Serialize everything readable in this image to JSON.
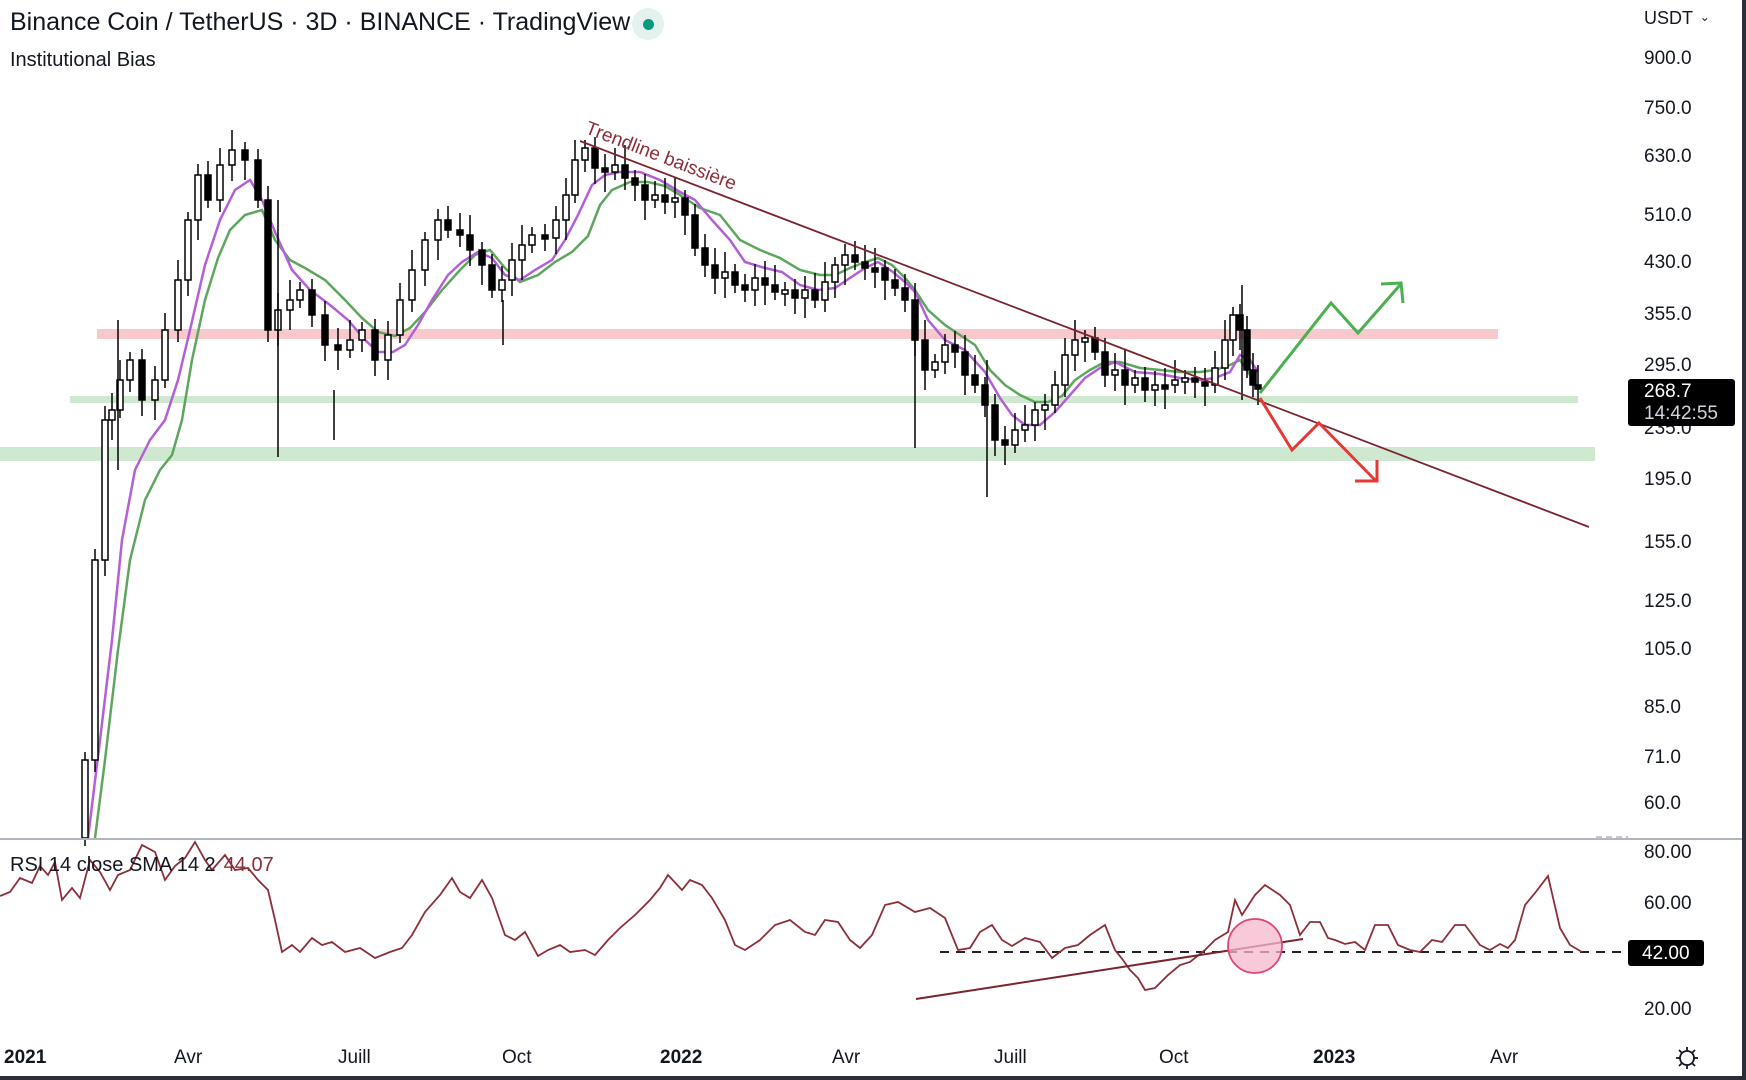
{
  "header": {
    "title": "Binance Coin / TetherUS · 3D · BINANCE · TradingView",
    "subtitle": "Institutional Bias",
    "status": "market-open"
  },
  "price_axis": {
    "currency": "USDT",
    "ticks": [
      "900.0",
      "750.0",
      "630.0",
      "510.0",
      "430.0",
      "355.0",
      "295.0",
      "235.0",
      "195.0",
      "155.0",
      "125.0",
      "105.0",
      "85.0",
      "71.0",
      "60.0"
    ],
    "last_price": "268.7",
    "countdown": "14:42:55"
  },
  "rsi": {
    "legend": "RSI 14 close SMA 14 2",
    "value": "44.07",
    "ticks": [
      "80.00",
      "60.00",
      "20.00"
    ],
    "level_label": "42.00"
  },
  "time_axis": {
    "labels": [
      {
        "text": "2021",
        "bold": true
      },
      {
        "text": "Avr",
        "bold": false
      },
      {
        "text": "Juill",
        "bold": false
      },
      {
        "text": "Oct",
        "bold": false
      },
      {
        "text": "2022",
        "bold": true
      },
      {
        "text": "Avr",
        "bold": false
      },
      {
        "text": "Juill",
        "bold": false
      },
      {
        "text": "Oct",
        "bold": false
      },
      {
        "text": "2023",
        "bold": true
      },
      {
        "text": "Avr",
        "bold": false
      }
    ]
  },
  "annotations": {
    "trendline_label": "Trendline baissière"
  },
  "colors": {
    "candle": "#000000",
    "ema_fast": "#b35fd6",
    "ema_slow": "#5ea65e",
    "resistance_zone": "#f7c9cc",
    "support_zone": "#cfe9d0",
    "trendline": "#7a2430",
    "rsi_line": "#8c2f39",
    "bull_arrow": "#4caf50",
    "bear_arrow": "#e53935",
    "highlight_circle": "#f6b8cc"
  },
  "chart_data": [
    {
      "type": "candlestick",
      "title": "Binance Coin / TetherUS · 3D · BINANCE",
      "xlabel": "",
      "ylabel": "USDT",
      "scale": "log",
      "ylim": [
        55,
        950
      ],
      "x_ticks": [
        "2021",
        "Avr",
        "Juill",
        "Oct",
        "2022",
        "Avr",
        "Juill",
        "Oct",
        "2023",
        "Avr"
      ],
      "y_ticks": [
        900,
        750,
        630,
        510,
        430,
        355,
        295,
        235,
        195,
        155,
        125,
        105,
        85,
        71,
        60
      ],
      "approx_close_path": [
        {
          "date": "2021-02",
          "price": 60
        },
        {
          "date": "2021-02-20",
          "price": 260
        },
        {
          "date": "2021-03",
          "price": 250
        },
        {
          "date": "2021-04-10",
          "price": 500
        },
        {
          "date": "2021-05-05",
          "price": 640
        },
        {
          "date": "2021-05-20",
          "price": 330
        },
        {
          "date": "2021-06-20",
          "price": 290
        },
        {
          "date": "2021-07-20",
          "price": 300
        },
        {
          "date": "2021-09-05",
          "price": 480
        },
        {
          "date": "2021-09-25",
          "price": 360
        },
        {
          "date": "2021-11-05",
          "price": 620
        },
        {
          "date": "2021-12-05",
          "price": 560
        },
        {
          "date": "2022-01-10",
          "price": 470
        },
        {
          "date": "2022-02-10",
          "price": 380
        },
        {
          "date": "2022-03-30",
          "price": 440
        },
        {
          "date": "2022-05-10",
          "price": 300
        },
        {
          "date": "2022-06-18",
          "price": 215
        },
        {
          "date": "2022-07-20",
          "price": 260
        },
        {
          "date": "2022-08-10",
          "price": 320
        },
        {
          "date": "2022-09-20",
          "price": 275
        },
        {
          "date": "2022-10-25",
          "price": 285
        },
        {
          "date": "2022-11-05",
          "price": 360
        },
        {
          "date": "2022-11-18",
          "price": 268.7
        }
      ],
      "last_price": 268.7,
      "indicators": [
        {
          "name": "EMA fast",
          "color": "#b35fd6"
        },
        {
          "name": "EMA slow",
          "color": "#5ea65e"
        }
      ],
      "zones": [
        {
          "name": "resistance",
          "price": 330,
          "color": "#f7c9cc"
        },
        {
          "name": "support",
          "price": 265,
          "color": "#cfe9d0"
        },
        {
          "name": "support",
          "price": 220,
          "color": "#cfe9d0"
        }
      ],
      "annotations": [
        {
          "type": "trendline",
          "label": "Trendline baissière",
          "from": {
            "date": "2021-11-05",
            "price": 660
          },
          "to": {
            "date": "2023-06",
            "price": 165
          }
        },
        {
          "type": "arrow",
          "direction": "bullish",
          "path_prices": [
            268,
            370,
            330,
            410
          ]
        },
        {
          "type": "arrow",
          "direction": "bearish",
          "path_prices": [
            268,
            215,
            245,
            195
          ]
        }
      ]
    },
    {
      "type": "line",
      "title": "RSI 14 close SMA 14 2",
      "current_value": 44.07,
      "ylim": [
        10,
        85
      ],
      "y_ticks": [
        80,
        60,
        20
      ],
      "horizontal_level": 42,
      "approx_values": [
        {
          "date": "2021-02",
          "value": 72
        },
        {
          "date": "2021-04",
          "value": 78
        },
        {
          "date": "2021-05-10",
          "value": 75
        },
        {
          "date": "2021-05-25",
          "value": 46
        },
        {
          "date": "2021-07-01",
          "value": 44
        },
        {
          "date": "2021-08-15",
          "value": 63
        },
        {
          "date": "2021-09-20",
          "value": 43
        },
        {
          "date": "2021-11-05",
          "value": 72
        },
        {
          "date": "2021-12-15",
          "value": 55
        },
        {
          "date": "2022-02-01",
          "value": 42
        },
        {
          "date": "2022-03-10",
          "value": 40
        },
        {
          "date": "2022-04-01",
          "value": 57
        },
        {
          "date": "2022-05-12",
          "value": 24
        },
        {
          "date": "2022-06-01",
          "value": 42
        },
        {
          "date": "2022-06-20",
          "value": 30
        },
        {
          "date": "2022-08-10",
          "value": 59
        },
        {
          "date": "2022-09-10",
          "value": 48
        },
        {
          "date": "2022-10-15",
          "value": 50
        },
        {
          "date": "2022-11-08",
          "value": 70
        },
        {
          "date": "2022-11-18",
          "value": 44
        }
      ],
      "annotations": [
        {
          "type": "support_trendline",
          "from": {
            "date": "2022-05-12",
            "value": 24
          },
          "to": {
            "date": "2022-12-01",
            "value": 46
          }
        },
        {
          "type": "circle_highlight",
          "date": "2022-11-18",
          "value": 44
        }
      ]
    }
  ]
}
